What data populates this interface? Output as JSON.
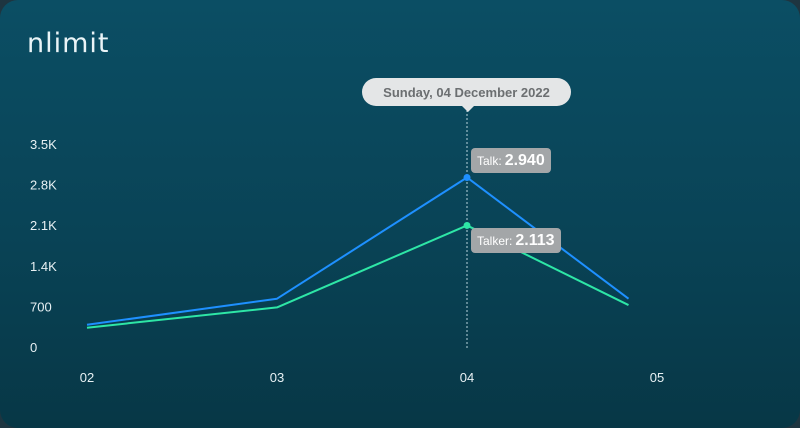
{
  "brand": {
    "logo_text": "nlimit"
  },
  "tooltip": {
    "date_label": "Sunday, 04 December 2022",
    "active_category": "04",
    "entries": [
      {
        "label": "Talk:",
        "value": "2.940"
      },
      {
        "label": "Talker:",
        "value": "2.113"
      }
    ]
  },
  "colors": {
    "talk": "#1e90ff",
    "talker": "#2ee6a6"
  },
  "chart_data": {
    "type": "line",
    "categories": [
      "02",
      "03",
      "04",
      "05"
    ],
    "x_positions": [
      0,
      1,
      2,
      3
    ],
    "series": [
      {
        "name": "Talk",
        "values": [
          400,
          850,
          2940,
          850
        ]
      },
      {
        "name": "Talker",
        "values": [
          350,
          700,
          2113,
          740
        ]
      }
    ],
    "x_end": 2.85,
    "ylim": [
      0,
      3500
    ],
    "yticks": [
      0,
      700,
      1400,
      2100,
      2800,
      3500
    ],
    "ytick_labels": [
      "0",
      "700",
      "1.4K",
      "2.1K",
      "2.8K",
      "3.5K"
    ],
    "grid": false,
    "crosshair_at": "04"
  }
}
